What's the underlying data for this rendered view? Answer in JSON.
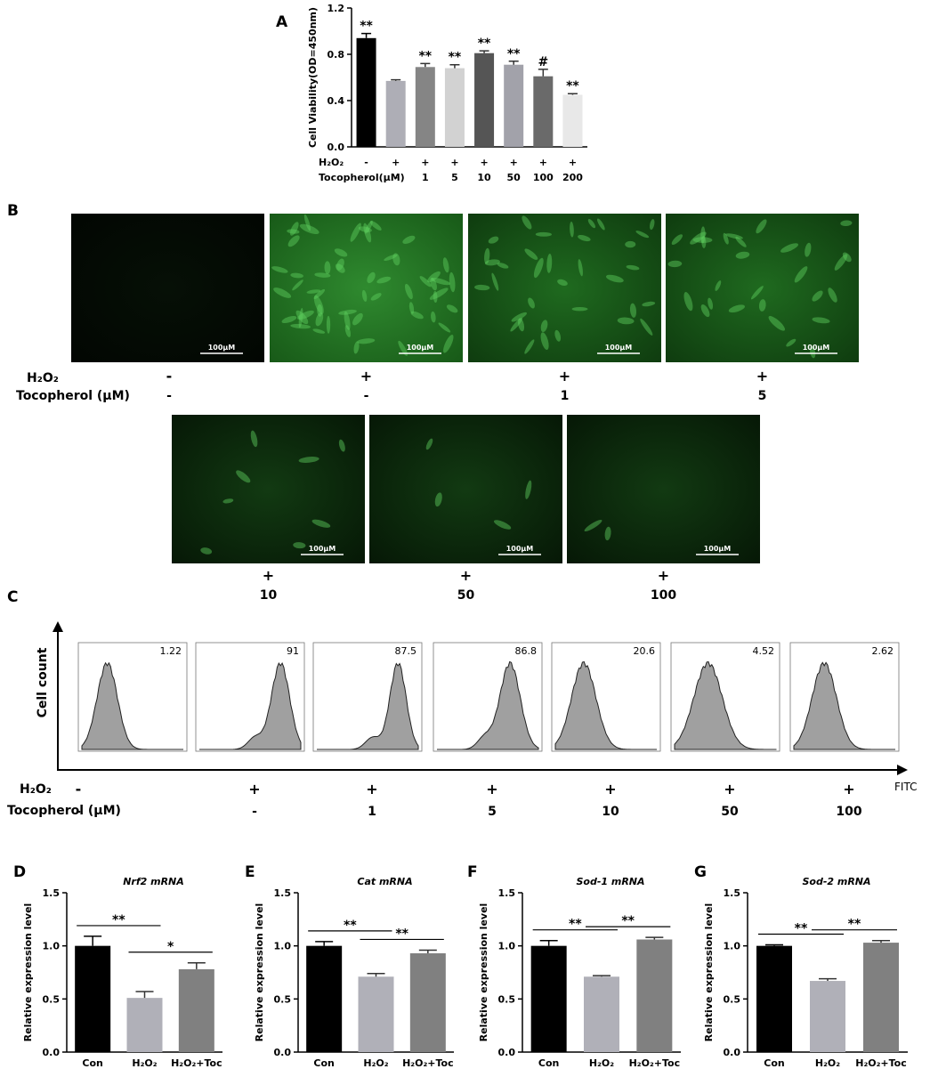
{
  "chart_data": [
    {
      "type": "bar",
      "panel_label": "A",
      "ylabel": "Cell Viability(OD=450nm)",
      "values": [
        0.94,
        0.57,
        0.69,
        0.68,
        0.81,
        0.71,
        0.61,
        0.45
      ],
      "errors": [
        0.04,
        0.01,
        0.03,
        0.03,
        0.02,
        0.03,
        0.06,
        0.01
      ],
      "annotations": [
        "**",
        null,
        "**",
        "**",
        "**",
        "**",
        "#",
        "**"
      ],
      "colors": [
        "#000000",
        "#aeaeb6",
        "#858585",
        "#d2d2d2",
        "#555555",
        "#a2a2aa",
        "#6a6a6a",
        "#e8e8e8"
      ],
      "conditions": [
        {
          "label": "H₂O₂",
          "values": [
            "-",
            "+",
            "+",
            "+",
            "+",
            "+",
            "+",
            "+"
          ]
        },
        {
          "label": "Tocopherol(μM)",
          "values": [
            "-",
            "-",
            "1",
            "5",
            "10",
            "50",
            "100",
            "200"
          ]
        }
      ],
      "ylim": [
        0,
        1.2
      ],
      "yticks": [
        {
          "value": 0,
          "label": "0.0"
        },
        0.4,
        0.8,
        1.2
      ]
    },
    {
      "type": "bar",
      "panel_label": "D",
      "title": "Nrf2 mRNA",
      "ylabel": "Relative expression level",
      "categories": [
        "Con",
        "H₂O₂",
        "H₂O₂+Toc"
      ],
      "values": [
        1.0,
        0.51,
        0.78
      ],
      "errors": [
        0.09,
        0.06,
        0.06
      ],
      "comparisons": [
        "**",
        "*"
      ],
      "colors": [
        "#000000",
        "#b0b0b8",
        "#808080"
      ],
      "ylim": [
        0,
        1.5
      ],
      "yticks": [
        {
          "value": 0,
          "label": "0.0"
        },
        0.5,
        {
          "value": 1,
          "label": "1.0"
        },
        1.5
      ]
    },
    {
      "type": "bar",
      "panel_label": "E",
      "title": "Cat mRNA",
      "ylabel": "Relative expression level",
      "categories": [
        "Con",
        "H₂O₂",
        "H₂O₂+Toc"
      ],
      "values": [
        1.0,
        0.71,
        0.93
      ],
      "errors": [
        0.04,
        0.03,
        0.03
      ],
      "comparisons": [
        "**",
        "**"
      ],
      "colors": [
        "#000000",
        "#b0b0b8",
        "#808080"
      ],
      "ylim": [
        0,
        1.5
      ],
      "yticks": [
        {
          "value": 0,
          "label": "0.0"
        },
        0.5,
        {
          "value": 1,
          "label": "1.0"
        },
        1.5
      ]
    },
    {
      "type": "bar",
      "panel_label": "F",
      "title": "Sod-1 mRNA",
      "ylabel": "Relative expression level",
      "categories": [
        "Con",
        "H₂O₂",
        "H₂O₂+Toc"
      ],
      "values": [
        1.0,
        0.71,
        1.06
      ],
      "errors": [
        0.05,
        0.01,
        0.02
      ],
      "comparisons": [
        "**",
        "**"
      ],
      "colors": [
        "#000000",
        "#b0b0b8",
        "#808080"
      ],
      "ylim": [
        0,
        1.5
      ],
      "yticks": [
        {
          "value": 0,
          "label": "0.0"
        },
        0.5,
        {
          "value": 1,
          "label": "1.0"
        },
        1.5
      ]
    },
    {
      "type": "bar",
      "panel_label": "G",
      "title": "Sod-2 mRNA",
      "ylabel": "Relative expression level",
      "categories": [
        "Con",
        "H₂O₂",
        "H₂O₂+Toc"
      ],
      "values": [
        1.0,
        0.67,
        1.03
      ],
      "errors": [
        0.01,
        0.02,
        0.02
      ],
      "comparisons": [
        "**",
        "**"
      ],
      "colors": [
        "#000000",
        "#b0b0b8",
        "#808080"
      ],
      "ylim": [
        0,
        1.5
      ],
      "yticks": [
        {
          "value": 0,
          "label": "0.0"
        },
        0.5,
        {
          "value": 1,
          "label": "1.0"
        },
        1.5
      ]
    }
  ],
  "panel_b": {
    "label": "B",
    "row_labels": [
      "H₂O₂",
      "Tocopherol (μM)"
    ],
    "images": [
      {
        "h2o2": "-",
        "tocopherol": "-",
        "scale_bar": "100μM"
      },
      {
        "h2o2": "+",
        "tocopherol": "-",
        "scale_bar": "100μM"
      },
      {
        "h2o2": "+",
        "tocopherol": "1",
        "scale_bar": "100μM"
      },
      {
        "h2o2": "+",
        "tocopherol": "5",
        "scale_bar": "100μM"
      },
      {
        "h2o2": "+",
        "tocopherol": "10",
        "scale_bar": "100μM"
      },
      {
        "h2o2": "+",
        "tocopherol": "50",
        "scale_bar": "100μM"
      },
      {
        "h2o2": "+",
        "tocopherol": "100",
        "scale_bar": "100μM"
      }
    ]
  },
  "panel_c": {
    "label": "C",
    "ylabel": "Cell count",
    "xlabel": "FITC",
    "row_labels": [
      "H₂O₂",
      "Tocopherol (μM)"
    ],
    "histograms": [
      {
        "percent": 1.22,
        "h2o2": "-",
        "tocopherol": "-"
      },
      {
        "percent": 91,
        "h2o2": "+",
        "tocopherol": "-"
      },
      {
        "percent": 87.5,
        "h2o2": "+",
        "tocopherol": "1"
      },
      {
        "percent": 86.8,
        "h2o2": "+",
        "tocopherol": "5"
      },
      {
        "percent": 20.6,
        "h2o2": "+",
        "tocopherol": "10"
      },
      {
        "percent": 4.52,
        "h2o2": "+",
        "tocopherol": "50"
      },
      {
        "percent": 2.62,
        "h2o2": "+",
        "tocopherol": "100"
      }
    ]
  }
}
